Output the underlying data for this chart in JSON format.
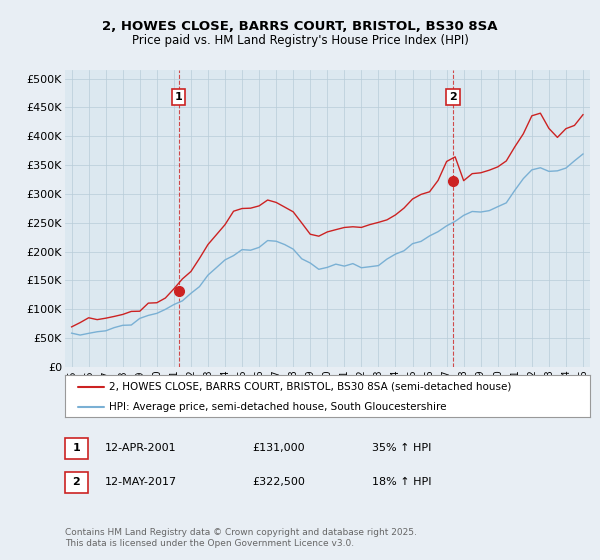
{
  "title_line1": "2, HOWES CLOSE, BARRS COURT, BRISTOL, BS30 8SA",
  "title_line2": "Price paid vs. HM Land Registry's House Price Index (HPI)",
  "yticks": [
    0,
    50000,
    100000,
    150000,
    200000,
    250000,
    300000,
    350000,
    400000,
    450000,
    500000
  ],
  "ytick_labels": [
    "£0",
    "£50K",
    "£100K",
    "£150K",
    "£200K",
    "£250K",
    "£300K",
    "£350K",
    "£400K",
    "£450K",
    "£500K"
  ],
  "ylim": [
    0,
    515000
  ],
  "hpi_color": "#7ab0d4",
  "price_color": "#cc2222",
  "sale1_date": "12-APR-2001",
  "sale1_price": "£131,000",
  "sale1_hpi": "35% ↑ HPI",
  "sale1_year": 2001.28,
  "sale1_value": 131000,
  "sale2_date": "12-MAY-2017",
  "sale2_price": "£322,500",
  "sale2_hpi": "18% ↑ HPI",
  "sale2_year": 2017.37,
  "sale2_value": 322500,
  "legend_line1": "2, HOWES CLOSE, BARRS COURT, BRISTOL, BS30 8SA (semi-detached house)",
  "legend_line2": "HPI: Average price, semi-detached house, South Gloucestershire",
  "footnote": "Contains HM Land Registry data © Crown copyright and database right 2025.\nThis data is licensed under the Open Government Licence v3.0.",
  "bg_color": "#e8eef4",
  "plot_bg_color": "#dce8f0",
  "grid_color": "#b8ccd8",
  "years_hpi": [
    1995,
    1995.5,
    1996,
    1996.5,
    1997,
    1997.5,
    1998,
    1998.5,
    1999,
    1999.5,
    2000,
    2000.5,
    2001,
    2001.5,
    2002,
    2002.5,
    2003,
    2003.5,
    2004,
    2004.5,
    2005,
    2005.5,
    2006,
    2006.5,
    2007,
    2007.5,
    2008,
    2008.5,
    2009,
    2009.5,
    2010,
    2010.5,
    2011,
    2011.5,
    2012,
    2012.5,
    2013,
    2013.5,
    2014,
    2014.5,
    2015,
    2015.5,
    2016,
    2016.5,
    2017,
    2017.5,
    2018,
    2018.5,
    2019,
    2019.5,
    2020,
    2020.5,
    2021,
    2021.5,
    2022,
    2022.5,
    2023,
    2023.5,
    2024,
    2024.5,
    2025
  ],
  "hpi_values": [
    55000,
    56000,
    58000,
    60000,
    64000,
    68000,
    72000,
    76000,
    82000,
    88000,
    94000,
    100000,
    107000,
    115000,
    128000,
    142000,
    158000,
    172000,
    185000,
    196000,
    200000,
    202000,
    208000,
    215000,
    218000,
    215000,
    205000,
    192000,
    178000,
    170000,
    174000,
    176000,
    178000,
    178000,
    176000,
    175000,
    178000,
    184000,
    192000,
    202000,
    212000,
    218000,
    226000,
    236000,
    248000,
    256000,
    262000,
    265000,
    268000,
    272000,
    274000,
    284000,
    306000,
    326000,
    342000,
    346000,
    342000,
    339000,
    345000,
    355000,
    370000
  ],
  "price_values": [
    75000,
    77000,
    80000,
    83000,
    87000,
    91000,
    94000,
    97000,
    100000,
    106000,
    112000,
    119000,
    131000,
    148000,
    166000,
    187000,
    210000,
    230000,
    252000,
    268000,
    272000,
    274000,
    282000,
    290000,
    287000,
    278000,
    265000,
    245000,
    228000,
    225000,
    232000,
    238000,
    242000,
    245000,
    242000,
    240000,
    248000,
    256000,
    265000,
    278000,
    290000,
    298000,
    308000,
    322000,
    358000,
    360000,
    322500,
    330000,
    338000,
    342000,
    346000,
    354000,
    380000,
    408000,
    435000,
    440000,
    415000,
    400000,
    408000,
    420000,
    440000
  ]
}
